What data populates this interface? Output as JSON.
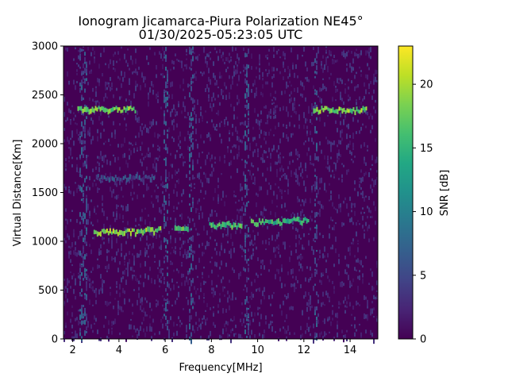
{
  "chart_data": {
    "type": "heatmap",
    "title_line1": "Ionogram Jicamarca-Piura Polarization NE45°",
    "title_line2": "01/30/2025-05:23:05 UTC",
    "xlabel": "Frequency[MHz]",
    "ylabel": "Virtual Distance[Km]",
    "colorbar_label": "SNR [dB]",
    "colormap": "viridis",
    "xlim": [
      1.6,
      15.2
    ],
    "ylim": [
      0,
      3000
    ],
    "clim": [
      0,
      23
    ],
    "x_ticks": [
      2,
      4,
      6,
      8,
      10,
      12,
      14
    ],
    "y_ticks": [
      0,
      500,
      1000,
      1500,
      2000,
      2500,
      3000
    ],
    "colorbar_ticks": [
      0,
      5,
      10,
      15,
      20
    ],
    "traces": [
      {
        "x_start": 2.9,
        "x_end": 4.8,
        "y": 1100,
        "snr": 22
      },
      {
        "x_start": 4.8,
        "x_end": 5.8,
        "y": 1115,
        "snr": 21
      },
      {
        "x_start": 6.4,
        "x_end": 7.0,
        "y": 1135,
        "snr": 20
      },
      {
        "x_start": 7.9,
        "x_end": 9.3,
        "y": 1170,
        "snr": 19
      },
      {
        "x_start": 9.7,
        "x_end": 11.2,
        "y": 1200,
        "snr": 18
      },
      {
        "x_start": 11.2,
        "x_end": 12.2,
        "y": 1220,
        "snr": 17
      },
      {
        "x_start": 3.0,
        "x_end": 5.5,
        "y": 1650,
        "snr": 8
      },
      {
        "x_start": 2.2,
        "x_end": 4.7,
        "y": 2350,
        "snr": 21
      },
      {
        "x_start": 12.4,
        "x_end": 14.7,
        "y": 2350,
        "snr": 21
      }
    ]
  }
}
